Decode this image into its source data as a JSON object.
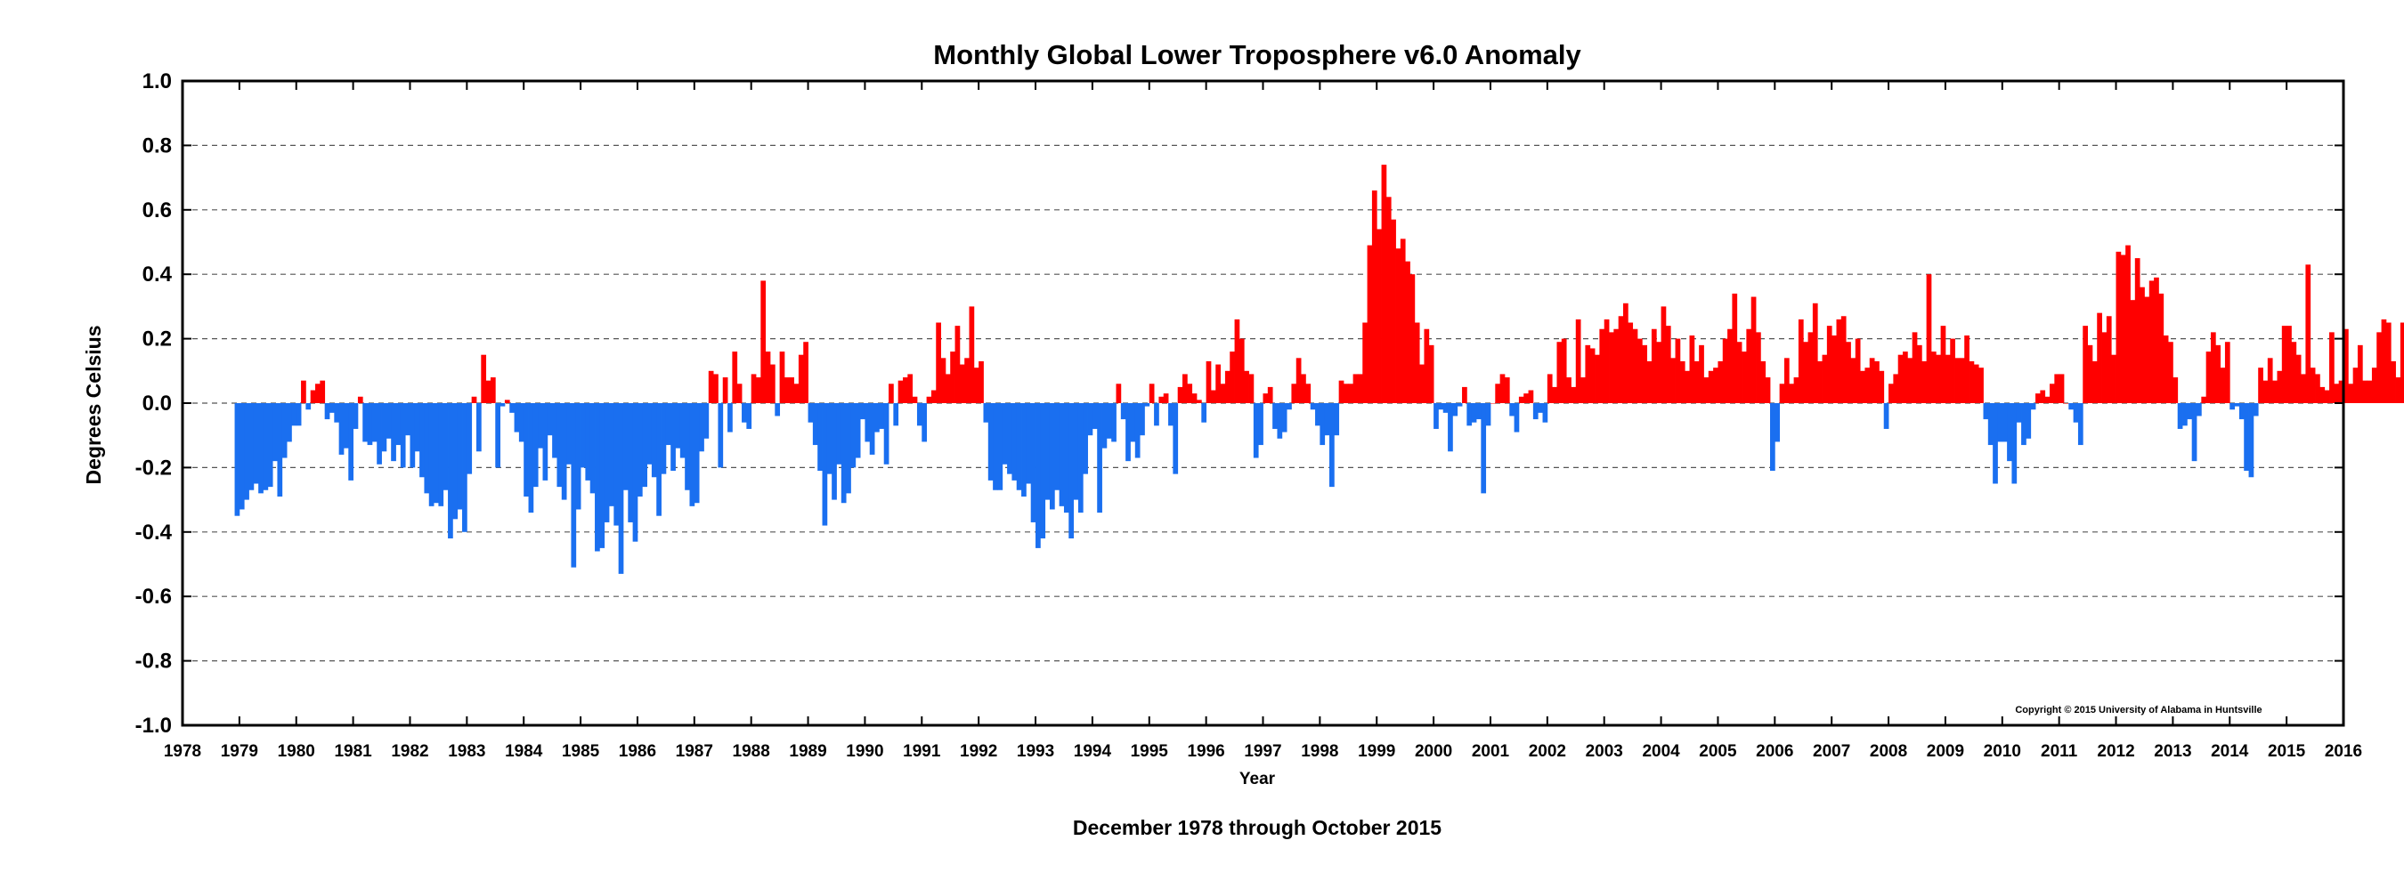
{
  "chart_data": {
    "type": "bar",
    "title": "Monthly Global Lower Troposphere v6.0 Anomaly",
    "subtitle": "December 1978 through October 2015",
    "xlabel": "Year",
    "ylabel": "Degrees Celsius",
    "copyright": "Copyright © 2015 University of Alabama in Huntsville",
    "xlim": [
      1978,
      2016
    ],
    "ylim": [
      -1.0,
      1.0
    ],
    "x_ticks": [
      "1978",
      "1979",
      "1980",
      "1981",
      "1982",
      "1983",
      "1984",
      "1985",
      "1986",
      "1987",
      "1988",
      "1989",
      "1990",
      "1991",
      "1992",
      "1993",
      "1994",
      "1995",
      "1996",
      "1997",
      "1998",
      "1999",
      "2000",
      "2001",
      "2002",
      "2003",
      "2004",
      "2005",
      "2006",
      "2007",
      "2008",
      "2009",
      "2010",
      "2011",
      "2012",
      "2013",
      "2014",
      "2015",
      "2016"
    ],
    "y_ticks": [
      "1.0",
      "0.8",
      "0.6",
      "0.4",
      "0.2",
      "0.0",
      "-0.2",
      "-0.4",
      "-0.6",
      "-0.8",
      "-1.0"
    ],
    "y_tick_values": [
      1.0,
      0.8,
      0.6,
      0.4,
      0.2,
      0.0,
      -0.2,
      -0.4,
      -0.6,
      -0.8,
      -1.0
    ],
    "grid": "horizontal dashed",
    "colors": {
      "positive": "#ff0000",
      "negative": "#1a6ff0"
    },
    "start": "1978-12",
    "end": "2015-10",
    "values": [
      -0.35,
      -0.33,
      -0.3,
      -0.27,
      -0.25,
      -0.28,
      -0.27,
      -0.26,
      -0.18,
      -0.29,
      -0.17,
      -0.12,
      -0.07,
      -0.07,
      0.07,
      -0.02,
      0.04,
      0.06,
      0.07,
      -0.05,
      -0.03,
      -0.06,
      -0.16,
      -0.14,
      -0.24,
      -0.08,
      0.02,
      -0.12,
      -0.13,
      -0.12,
      -0.19,
      -0.15,
      -0.11,
      -0.18,
      -0.13,
      -0.2,
      -0.1,
      -0.2,
      -0.15,
      -0.23,
      -0.28,
      -0.32,
      -0.31,
      -0.32,
      -0.27,
      -0.42,
      -0.36,
      -0.33,
      -0.4,
      -0.22,
      0.02,
      -0.15,
      0.15,
      0.07,
      0.08,
      -0.2,
      -0.01,
      0.01,
      -0.03,
      -0.09,
      -0.12,
      -0.29,
      -0.34,
      -0.26,
      -0.14,
      -0.24,
      -0.1,
      -0.17,
      -0.26,
      -0.3,
      -0.19,
      -0.51,
      -0.33,
      -0.2,
      -0.24,
      -0.28,
      -0.46,
      -0.45,
      -0.37,
      -0.32,
      -0.38,
      -0.53,
      -0.27,
      -0.37,
      -0.43,
      -0.29,
      -0.26,
      -0.19,
      -0.23,
      -0.35,
      -0.22,
      -0.13,
      -0.21,
      -0.14,
      -0.17,
      -0.27,
      -0.32,
      -0.31,
      -0.15,
      -0.11,
      0.1,
      0.09,
      -0.2,
      0.08,
      -0.09,
      0.16,
      0.06,
      -0.06,
      -0.08,
      0.09,
      0.08,
      0.38,
      0.16,
      0.12,
      -0.04,
      0.16,
      0.08,
      0.08,
      0.06,
      0.15,
      0.19,
      -0.06,
      -0.13,
      -0.21,
      -0.38,
      -0.22,
      -0.3,
      -0.19,
      -0.31,
      -0.28,
      -0.2,
      -0.17,
      -0.05,
      -0.12,
      -0.16,
      -0.09,
      -0.08,
      -0.19,
      0.06,
      -0.07,
      0.07,
      0.08,
      0.09,
      0.02,
      -0.07,
      -0.12,
      0.02,
      0.04,
      0.25,
      0.14,
      0.09,
      0.16,
      0.24,
      0.12,
      0.14,
      0.3,
      0.11,
      0.13,
      -0.06,
      -0.24,
      -0.27,
      -0.27,
      -0.19,
      -0.22,
      -0.24,
      -0.27,
      -0.29,
      -0.25,
      -0.37,
      -0.45,
      -0.42,
      -0.3,
      -0.33,
      -0.27,
      -0.32,
      -0.34,
      -0.42,
      -0.3,
      -0.34,
      -0.22,
      -0.1,
      -0.08,
      -0.34,
      -0.14,
      -0.11,
      -0.12,
      0.06,
      -0.05,
      -0.18,
      -0.12,
      -0.17,
      -0.1,
      -0.01,
      0.06,
      -0.07,
      0.02,
      0.03,
      -0.07,
      -0.22,
      0.05,
      0.09,
      0.06,
      0.03,
      0.01,
      -0.06,
      0.13,
      0.04,
      0.12,
      0.06,
      0.1,
      0.16,
      0.26,
      0.2,
      0.1,
      0.09,
      -0.17,
      -0.13,
      0.03,
      0.05,
      -0.08,
      -0.11,
      -0.09,
      -0.02,
      0.06,
      0.14,
      0.09,
      0.06,
      -0.02,
      -0.07,
      -0.13,
      -0.1,
      -0.26,
      -0.1,
      0.07,
      0.06,
      0.06,
      0.09,
      0.09,
      0.25,
      0.49,
      0.66,
      0.54,
      0.74,
      0.64,
      0.57,
      0.48,
      0.51,
      0.44,
      0.4,
      0.25,
      0.12,
      0.23,
      0.18,
      -0.08,
      -0.02,
      -0.03,
      -0.15,
      -0.04,
      -0.01,
      0.05,
      -0.07,
      -0.06,
      -0.05,
      -0.28,
      -0.07,
      0.0,
      0.06,
      0.09,
      0.08,
      -0.04,
      -0.09,
      0.02,
      0.03,
      0.04,
      -0.05,
      -0.03,
      -0.06,
      0.09,
      0.05,
      0.19,
      0.2,
      0.08,
      0.05,
      0.26,
      0.08,
      0.18,
      0.17,
      0.15,
      0.23,
      0.26,
      0.22,
      0.23,
      0.27,
      0.31,
      0.25,
      0.23,
      0.2,
      0.18,
      0.13,
      0.23,
      0.19,
      0.3,
      0.24,
      0.14,
      0.2,
      0.13,
      0.1,
      0.21,
      0.13,
      0.18,
      0.08,
      0.1,
      0.11,
      0.13,
      0.2,
      0.23,
      0.34,
      0.19,
      0.16,
      0.23,
      0.33,
      0.22,
      0.13,
      0.08,
      -0.21,
      -0.12,
      0.06,
      0.14,
      0.06,
      0.08,
      0.26,
      0.19,
      0.22,
      0.31,
      0.13,
      0.15,
      0.24,
      0.21,
      0.26,
      0.27,
      0.19,
      0.14,
      0.2,
      0.1,
      0.11,
      0.14,
      0.13,
      0.1,
      -0.08,
      0.06,
      0.09,
      0.15,
      0.16,
      0.14,
      0.22,
      0.18,
      0.13,
      0.4,
      0.16,
      0.15,
      0.24,
      0.15,
      0.2,
      0.14,
      0.14,
      0.21,
      0.13,
      0.12,
      0.11,
      -0.05,
      -0.13,
      -0.25,
      -0.12,
      -0.12,
      -0.18,
      -0.25,
      -0.06,
      -0.13,
      -0.11,
      -0.02,
      0.03,
      0.04,
      0.02,
      0.06,
      0.09,
      0.09,
      0.0,
      -0.02,
      -0.06,
      -0.13,
      0.24,
      0.18,
      0.13,
      0.28,
      0.22,
      0.27,
      0.15,
      0.47,
      0.46,
      0.49,
      0.32,
      0.45,
      0.36,
      0.33,
      0.38,
      0.39,
      0.34,
      0.21,
      0.19,
      0.08,
      -0.08,
      -0.07,
      -0.05,
      -0.18,
      -0.04,
      0.02,
      0.16,
      0.22,
      0.18,
      0.11,
      0.19,
      -0.02,
      -0.01,
      -0.05,
      -0.21,
      -0.23,
      -0.04,
      0.11,
      0.07,
      0.14,
      0.07,
      0.1,
      0.24,
      0.24,
      0.19,
      0.15,
      0.09,
      0.43,
      0.11,
      0.09,
      0.05,
      0.04,
      0.22,
      0.06,
      0.07,
      0.23,
      0.06,
      0.11,
      0.18,
      0.07,
      0.07,
      0.11,
      0.22,
      0.26,
      0.25,
      0.13,
      0.08,
      0.25,
      0.18,
      0.22,
      0.17,
      0.17,
      0.14,
      0.27,
      0.32,
      0.17,
      0.2,
      0.26,
      0.42
    ]
  }
}
